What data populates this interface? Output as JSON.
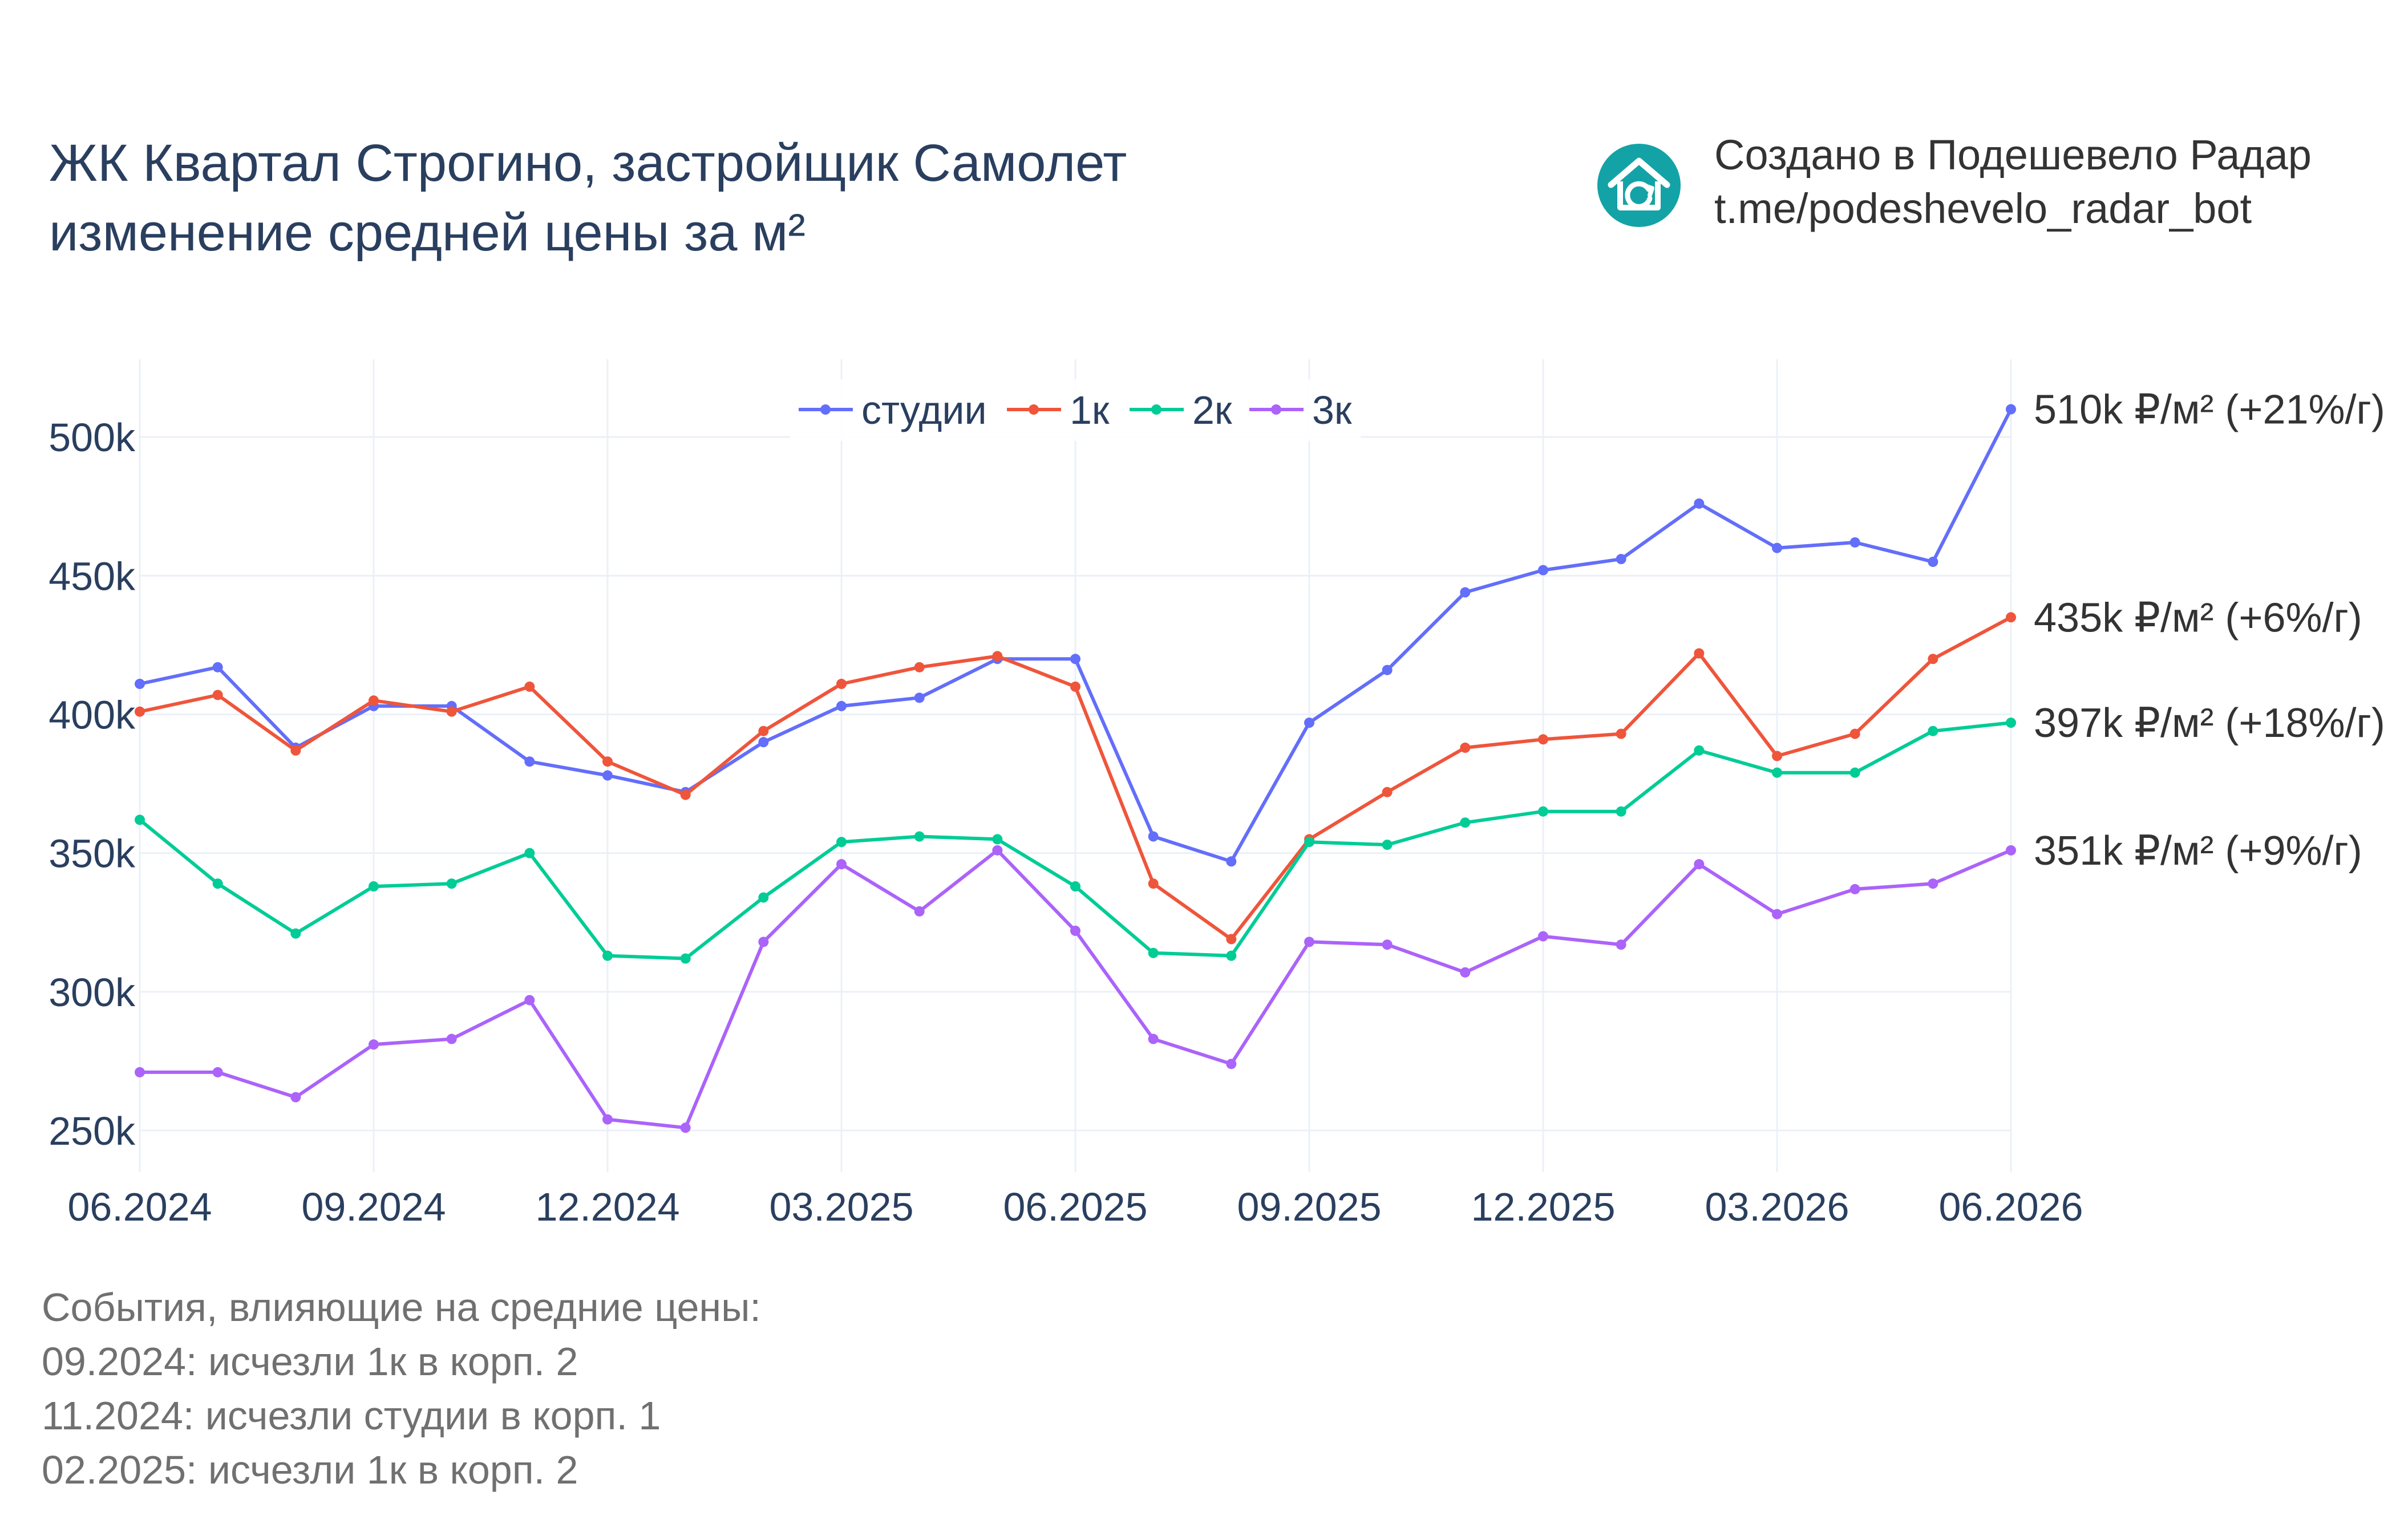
{
  "title": {
    "line1": "ЖК Квартал Строгино, застройщик Самолет",
    "line2": "изменение средней цены за м²"
  },
  "credit": {
    "line1": "Создано в Подешевело Радар",
    "line2": "t.me/podeshevelo_radar_bot",
    "icon": "house-icon"
  },
  "events": {
    "heading": "События, влияющие на средние цены:",
    "items": [
      "09.2024: исчезли 1к в корп. 2",
      "11.2024: исчезли студии в корп. 1",
      "02.2025: исчезли 1к в корп. 2"
    ]
  },
  "chart_data": {
    "type": "line",
    "x": [
      "06.2024",
      "07.2024",
      "08.2024",
      "09.2024",
      "10.2024",
      "11.2024",
      "12.2024",
      "01.2025",
      "02.2025",
      "03.2025",
      "04.2025",
      "05.2025",
      "06.2025",
      "07.2025",
      "08.2025",
      "09.2025",
      "10.2025",
      "11.2025",
      "12.2025",
      "01.2026",
      "02.2026",
      "03.2026",
      "04.2026",
      "05.2026",
      "06.2026"
    ],
    "x_ticks": [
      "06.2024",
      "09.2024",
      "12.2024",
      "03.2025",
      "06.2025",
      "09.2025",
      "12.2025",
      "03.2026",
      "06.2026"
    ],
    "y_ticks": [
      250000,
      300000,
      350000,
      400000,
      450000,
      500000
    ],
    "y_tick_labels": [
      "250k",
      "300k",
      "350k",
      "400k",
      "450k",
      "500k"
    ],
    "ylim": [
      235000,
      528000
    ],
    "grid": true,
    "legend_position": "top-center",
    "series": [
      {
        "name": "студии",
        "color": "#636efa",
        "end_label": "510k ₽/м² (+21%/г)",
        "values": [
          411000,
          417000,
          388000,
          403000,
          403000,
          383000,
          378000,
          372000,
          390000,
          403000,
          406000,
          420000,
          420000,
          356000,
          347000,
          397000,
          416000,
          444000,
          452000,
          456000,
          476000,
          460000,
          462000,
          455000,
          510000
        ]
      },
      {
        "name": "1к",
        "color": "#ef553b",
        "end_label": "435k ₽/м² (+6%/г)",
        "values": [
          401000,
          407000,
          387000,
          405000,
          401000,
          410000,
          383000,
          371000,
          394000,
          411000,
          417000,
          421000,
          410000,
          339000,
          319000,
          355000,
          372000,
          388000,
          391000,
          393000,
          422000,
          385000,
          393000,
          420000,
          435000
        ]
      },
      {
        "name": "2к",
        "color": "#00cc96",
        "end_label": "397k ₽/м² (+18%/г)",
        "values": [
          362000,
          339000,
          321000,
          338000,
          339000,
          350000,
          313000,
          312000,
          334000,
          354000,
          356000,
          355000,
          338000,
          314000,
          313000,
          354000,
          353000,
          361000,
          365000,
          365000,
          387000,
          379000,
          379000,
          394000,
          397000
        ]
      },
      {
        "name": "3к",
        "color": "#ab63fa",
        "end_label": "351k ₽/м² (+9%/г)",
        "values": [
          271000,
          271000,
          262000,
          281000,
          283000,
          297000,
          254000,
          251000,
          318000,
          346000,
          329000,
          351000,
          322000,
          283000,
          274000,
          318000,
          317000,
          307000,
          320000,
          317000,
          346000,
          328000,
          337000,
          339000,
          351000
        ]
      }
    ]
  }
}
